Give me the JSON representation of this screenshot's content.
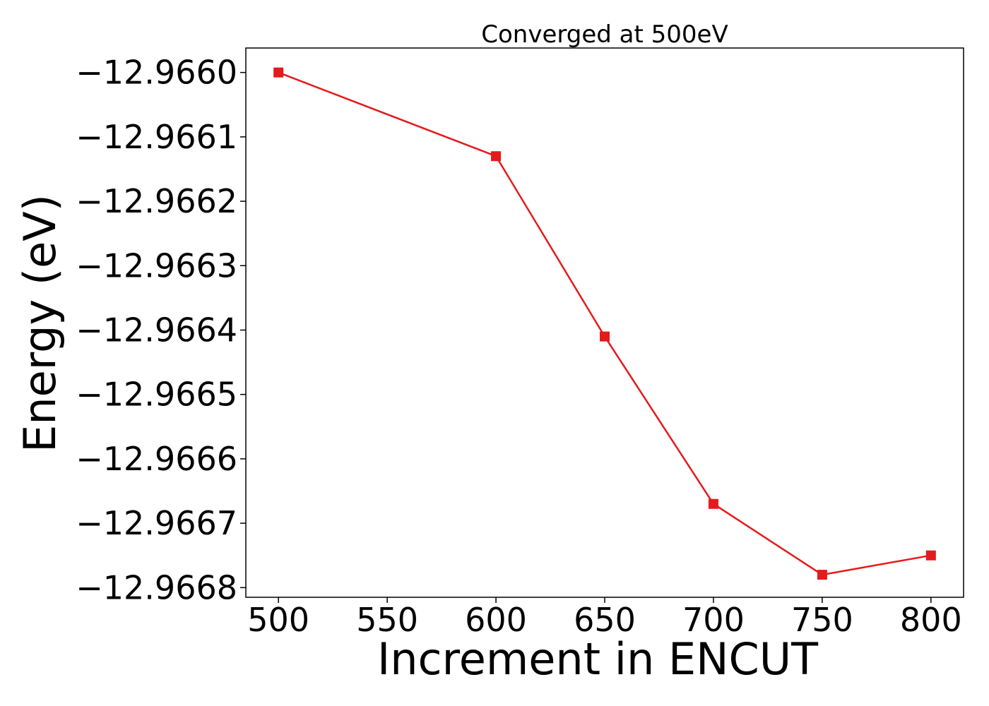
{
  "chart_data": {
    "type": "line",
    "title": "Converged at 500eV",
    "xlabel": "Increment in ENCUT",
    "ylabel": "Energy (eV)",
    "x": [
      500,
      600,
      650,
      700,
      750,
      800
    ],
    "series": [
      {
        "values": [
          -12.966,
          -12.96613,
          -12.96641,
          -12.96667,
          -12.96678,
          -12.96675
        ],
        "color": "#e41a1c",
        "marker": "square"
      }
    ],
    "xlim": [
      485,
      815
    ],
    "ylim": [
      -12.966815,
      -12.965962
    ],
    "xticks": [
      500,
      550,
      600,
      650,
      700,
      750,
      800
    ],
    "xtick_labels": [
      "500",
      "550",
      "600",
      "650",
      "700",
      "750",
      "800"
    ],
    "yticks": [
      -12.966,
      -12.9661,
      -12.9662,
      -12.9663,
      -12.9664,
      -12.9665,
      -12.9666,
      -12.9667,
      -12.9668
    ],
    "ytick_labels": [
      "−12.9660",
      "−12.9661",
      "−12.9662",
      "−12.9663",
      "−12.9664",
      "−12.9665",
      "−12.9666",
      "−12.9667",
      "−12.9668"
    ],
    "grid": false,
    "legend": "none"
  }
}
